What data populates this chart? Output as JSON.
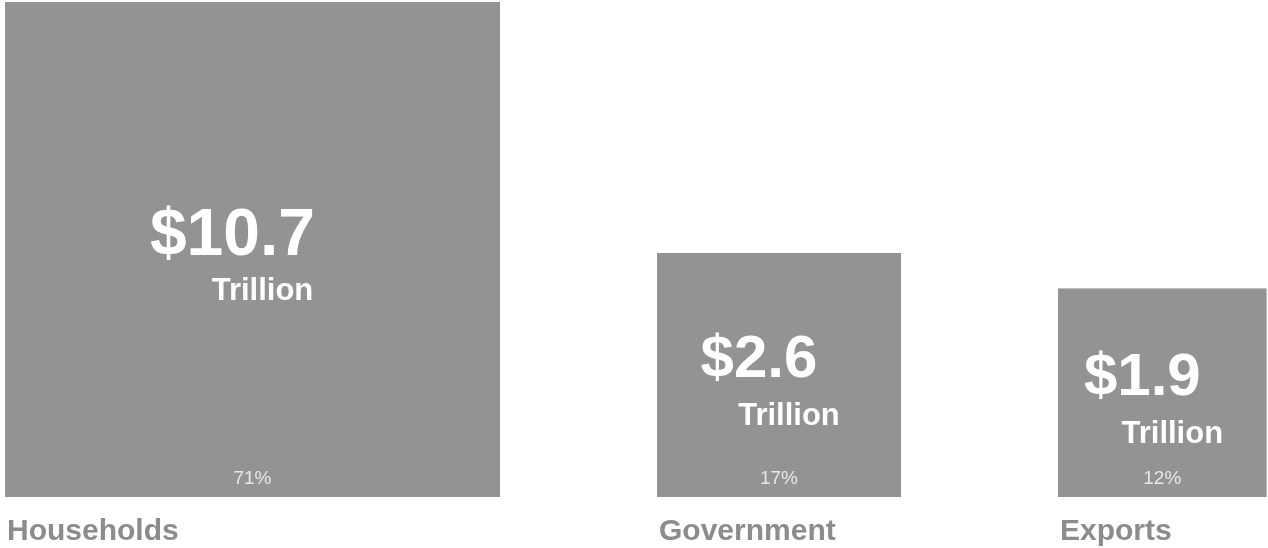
{
  "chart_data": {
    "type": "other",
    "categories": [
      "Households",
      "Government",
      "Exports"
    ],
    "values": [
      10.7,
      2.6,
      1.9
    ],
    "value_labels": [
      "$10.7 Trillion",
      "$2.6 Trillion",
      "$1.9 Trillion"
    ],
    "color": "#939393",
    "annotations": [
      {
        "text": "71%",
        "x": "Households"
      },
      {
        "text": "17%",
        "x": "Government"
      },
      {
        "text": "12%",
        "x": "Exports"
      }
    ]
  }
}
